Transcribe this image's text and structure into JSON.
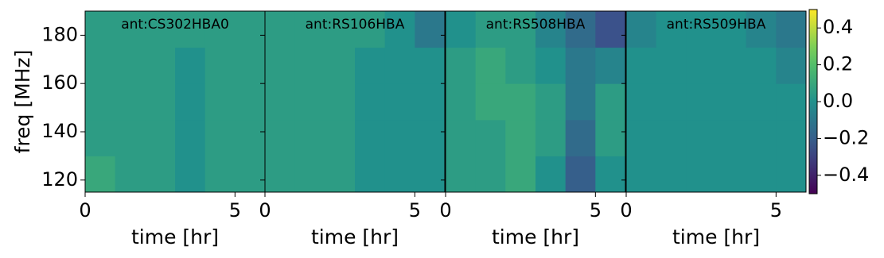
{
  "chart_data": [
    {
      "type": "heatmap",
      "title": "ant:CS302HBA0",
      "xlabel": "time [hr]",
      "ylabel": "freq [MHz]",
      "xlim": [
        0,
        6
      ],
      "ylim": [
        115,
        190
      ],
      "xticks": [
        0,
        5
      ],
      "yticks": [
        120,
        140,
        160,
        180
      ],
      "xbins": [
        0,
        1,
        2,
        3,
        4,
        5,
        6
      ],
      "ybins": [
        115,
        130,
        145,
        160,
        175,
        190
      ],
      "z": [
        [
          0.1,
          0.05,
          0.05,
          0.0,
          0.05,
          0.05
        ],
        [
          0.05,
          0.05,
          0.05,
          0.0,
          0.05,
          0.05
        ],
        [
          0.05,
          0.05,
          0.05,
          0.0,
          0.05,
          0.05
        ],
        [
          0.05,
          0.05,
          0.05,
          0.0,
          0.05,
          0.05
        ],
        [
          0.05,
          0.05,
          0.05,
          0.05,
          0.05,
          0.05
        ]
      ]
    },
    {
      "type": "heatmap",
      "title": "ant:RS106HBA",
      "xlabel": "time [hr]",
      "xlim": [
        0,
        6
      ],
      "ylim": [
        115,
        190
      ],
      "xticks": [
        0,
        5
      ],
      "yticks": [
        120,
        140,
        160,
        180
      ],
      "xbins": [
        0,
        1,
        2,
        3,
        4,
        5,
        6
      ],
      "ybins": [
        115,
        130,
        145,
        160,
        175,
        190
      ],
      "z": [
        [
          0.05,
          0.05,
          0.05,
          0.0,
          0.0,
          0.0
        ],
        [
          0.05,
          0.05,
          0.05,
          0.0,
          0.0,
          0.0
        ],
        [
          0.05,
          0.05,
          0.05,
          0.0,
          0.0,
          0.0
        ],
        [
          0.05,
          0.05,
          0.05,
          0.0,
          0.0,
          0.0
        ],
        [
          0.05,
          0.05,
          0.05,
          0.05,
          0.0,
          -0.1
        ]
      ]
    },
    {
      "type": "heatmap",
      "title": "ant:RS508HBA",
      "xlabel": "time [hr]",
      "xlim": [
        0,
        6
      ],
      "ylim": [
        115,
        190
      ],
      "xticks": [
        0,
        5
      ],
      "yticks": [
        120,
        140,
        160,
        180
      ],
      "xbins": [
        0,
        1,
        2,
        3,
        4,
        5,
        6
      ],
      "ybins": [
        115,
        130,
        145,
        160,
        175,
        190
      ],
      "z": [
        [
          0.05,
          0.05,
          0.1,
          0.0,
          -0.2,
          0.0
        ],
        [
          0.05,
          0.05,
          0.1,
          0.05,
          -0.15,
          0.05
        ],
        [
          0.05,
          0.1,
          0.1,
          0.05,
          -0.1,
          0.05
        ],
        [
          0.05,
          0.1,
          0.05,
          0.0,
          -0.1,
          -0.05
        ],
        [
          0.0,
          0.05,
          0.05,
          -0.05,
          -0.15,
          -0.25
        ]
      ]
    },
    {
      "type": "heatmap",
      "title": "ant:RS509HBA",
      "xlabel": "time [hr]",
      "xlim": [
        0,
        6
      ],
      "ylim": [
        115,
        190
      ],
      "xticks": [
        0,
        5
      ],
      "yticks": [
        120,
        140,
        160,
        180
      ],
      "xbins": [
        0,
        1,
        2,
        3,
        4,
        5,
        6
      ],
      "ybins": [
        115,
        130,
        145,
        160,
        175,
        190
      ],
      "z": [
        [
          0.0,
          0.0,
          0.0,
          0.0,
          0.0,
          0.0
        ],
        [
          0.0,
          0.0,
          0.0,
          0.0,
          0.0,
          0.0
        ],
        [
          0.0,
          0.0,
          0.0,
          0.0,
          0.0,
          0.0
        ],
        [
          0.0,
          0.0,
          0.0,
          0.0,
          0.0,
          -0.05
        ],
        [
          -0.05,
          0.0,
          0.0,
          0.0,
          -0.05,
          -0.1
        ]
      ]
    }
  ],
  "colorbar": {
    "colormap": "viridis",
    "clim": [
      -0.5,
      0.5
    ],
    "ticks": [
      0.4,
      0.2,
      {
        "value": 0,
        "label": "0.0"
      },
      {
        "value": -0.2,
        "label": "−0.2"
      },
      {
        "value": -0.4,
        "label": "−0.4"
      }
    ]
  }
}
